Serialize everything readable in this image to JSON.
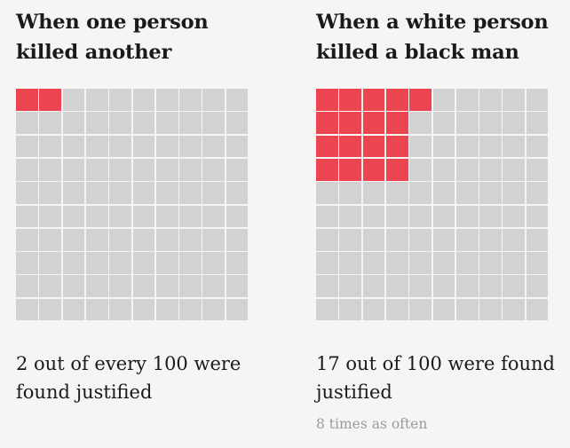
{
  "chart_data": [
    {
      "type": "waffle",
      "title": "When one person killed another",
      "total": 100,
      "value": 2,
      "caption": "2 out of every 100 were found justified",
      "highlight_color": "#ed4451",
      "base_color": "#d2d2d2"
    },
    {
      "type": "waffle",
      "title": "When a white person killed a black man",
      "total": 100,
      "value": 17,
      "caption": "17 out of 100 were found justified",
      "note": "8 times as often",
      "highlight_color": "#ed4451",
      "base_color": "#d2d2d2"
    }
  ]
}
